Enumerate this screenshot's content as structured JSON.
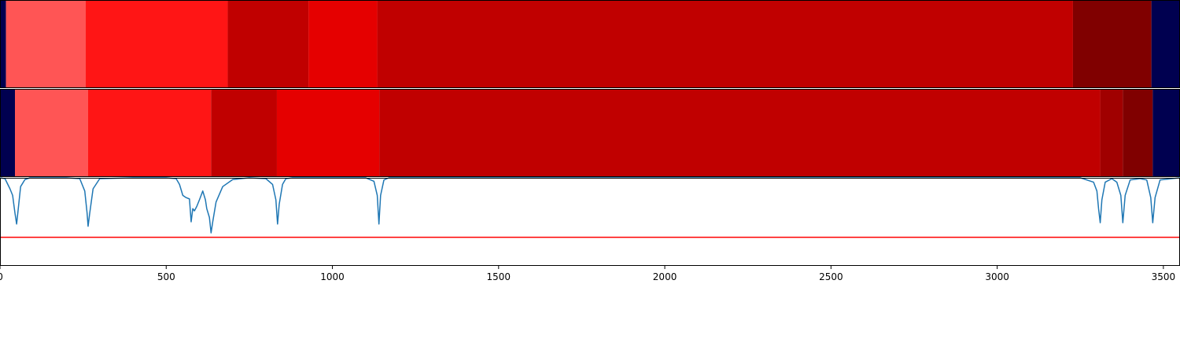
{
  "chart_data": {
    "type": "heatmap",
    "title": "",
    "xlabel": "",
    "ylabel": "",
    "xlim": [
      0,
      3550
    ],
    "xticks": [
      0,
      500,
      1000,
      1500,
      2000,
      2500,
      3000,
      3500
    ],
    "xtick_labels": [
      "0",
      "500",
      "1000",
      "1500",
      "2000",
      "2500",
      "3000",
      "3500"
    ],
    "grid": false,
    "legend": "none",
    "segment_rows": [
      {
        "name": "",
        "segments": [
          {
            "start": 0,
            "end": 18,
            "color": "#000050"
          },
          {
            "start": 18,
            "end": 258,
            "color": "#ff5555"
          },
          {
            "start": 258,
            "end": 685,
            "color": "#ff1515"
          },
          {
            "start": 685,
            "end": 928,
            "color": "#c00000"
          },
          {
            "start": 928,
            "end": 1135,
            "color": "#e50000"
          },
          {
            "start": 1135,
            "end": 3228,
            "color": "#c00000"
          },
          {
            "start": 3228,
            "end": 3464,
            "color": "#800000"
          },
          {
            "start": 3464,
            "end": 3550,
            "color": "#000050"
          }
        ]
      },
      {
        "name": "",
        "segments": [
          {
            "start": 0,
            "end": 45,
            "color": "#000050"
          },
          {
            "start": 45,
            "end": 265,
            "color": "#ff5555"
          },
          {
            "start": 265,
            "end": 635,
            "color": "#ff1515"
          },
          {
            "start": 635,
            "end": 833,
            "color": "#c00000"
          },
          {
            "start": 833,
            "end": 1141,
            "color": "#e50000"
          },
          {
            "start": 1141,
            "end": 3310,
            "color": "#c00000"
          },
          {
            "start": 3310,
            "end": 3378,
            "color": "#a00000"
          },
          {
            "start": 3378,
            "end": 3468,
            "color": "#800000"
          },
          {
            "start": 3468,
            "end": 3550,
            "color": "#000050"
          }
        ]
      }
    ],
    "line_panel": {
      "ylim": [
        -1.0,
        1.0
      ],
      "baseline": 1.0,
      "threshold": -0.35,
      "line_color": "#1f77b4",
      "threshold_color": "#ff0000",
      "series": [
        {
          "name": "",
          "x": [
            0,
            15,
            30,
            38,
            45,
            50,
            55,
            62,
            75,
            90,
            100,
            120,
            200,
            240,
            255,
            262,
            265,
            270,
            280,
            300,
            400,
            500,
            530,
            540,
            550,
            560,
            570,
            575,
            580,
            585,
            592,
            600,
            610,
            618,
            622,
            630,
            635,
            640,
            650,
            670,
            700,
            750,
            800,
            820,
            830,
            835,
            840,
            850,
            860,
            880,
            950,
            1100,
            1125,
            1135,
            1140,
            1145,
            1155,
            1170,
            1200,
            1300,
            2000,
            3000,
            3250,
            3290,
            3300,
            3305,
            3310,
            3315,
            3325,
            3345,
            3360,
            3372,
            3378,
            3385,
            3400,
            3430,
            3450,
            3462,
            3468,
            3475,
            3490,
            3550
          ],
          "y": [
            1.0,
            0.98,
            0.75,
            0.6,
            0.2,
            -0.05,
            0.3,
            0.8,
            0.96,
            1.0,
            1.0,
            1.0,
            1.0,
            0.98,
            0.7,
            0.2,
            -0.1,
            0.2,
            0.75,
            0.98,
            1.0,
            1.0,
            0.98,
            0.85,
            0.6,
            0.55,
            0.52,
            0.0,
            0.3,
            0.25,
            0.35,
            0.5,
            0.7,
            0.5,
            0.3,
            0.1,
            -0.25,
            0.0,
            0.45,
            0.8,
            0.96,
            1.0,
            0.98,
            0.85,
            0.5,
            -0.05,
            0.4,
            0.85,
            0.98,
            1.0,
            1.0,
            1.0,
            0.92,
            0.6,
            -0.05,
            0.6,
            0.95,
            1.0,
            1.0,
            1.0,
            1.0,
            1.0,
            1.0,
            0.9,
            0.7,
            0.3,
            -0.02,
            0.5,
            0.9,
            0.98,
            0.9,
            0.6,
            -0.02,
            0.6,
            0.95,
            0.98,
            0.95,
            0.55,
            -0.02,
            0.55,
            0.95,
            1.0
          ]
        }
      ]
    }
  }
}
